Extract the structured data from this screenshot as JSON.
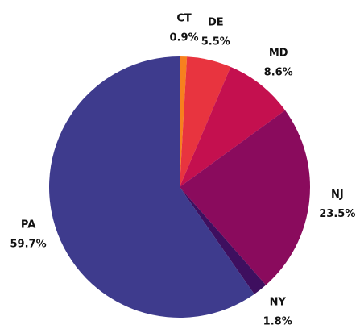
{
  "chart_data": {
    "type": "pie",
    "categories": [
      "CT",
      "DE",
      "MD",
      "NJ",
      "NY",
      "PA"
    ],
    "values": [
      0.9,
      5.5,
      8.6,
      23.5,
      1.8,
      59.7
    ],
    "value_labels": [
      "0.9%",
      "5.5%",
      "8.6%",
      "23.5%",
      "1.8%",
      "59.7%"
    ],
    "colors": [
      "#f7801e",
      "#e8343f",
      "#c4104f",
      "#8a0b5d",
      "#3e0f5f",
      "#3e3b8d"
    ]
  }
}
